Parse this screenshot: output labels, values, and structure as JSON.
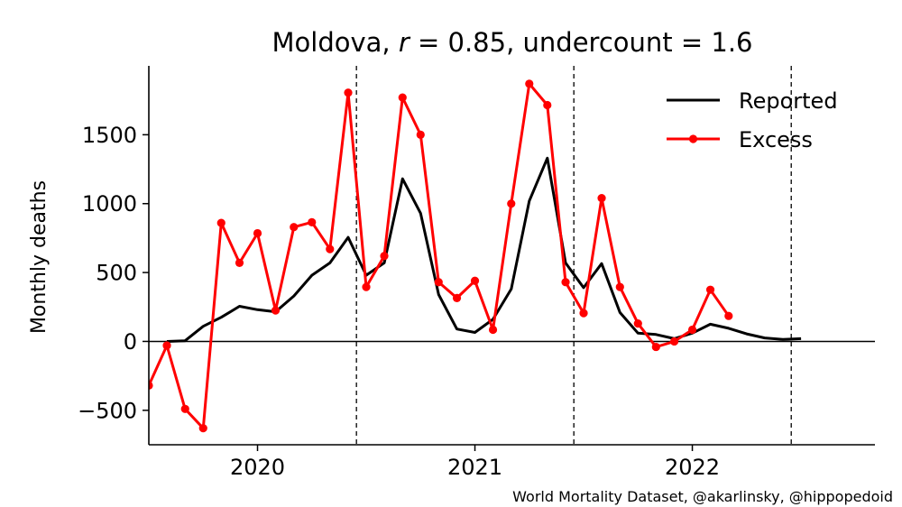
{
  "chart_data": {
    "type": "line",
    "title_prefix": "Moldova, ",
    "title_r_symbol": "r",
    "title_r_value": " = 0.85, undercount = 1.6",
    "ylabel": "Monthly deaths",
    "xlabel": "",
    "xlim": [
      2019.5,
      2022.84
    ],
    "ylim": [
      -750,
      2000
    ],
    "y_ticks": [
      -500,
      0,
      500,
      1000,
      1500
    ],
    "y_tick_labels": [
      "−500",
      "0",
      "500",
      "1000",
      "1500"
    ],
    "x_ticks": [
      2020,
      2021,
      2022
    ],
    "x_tick_labels": [
      "2020",
      "2021",
      "2022"
    ],
    "vlines": [
      2020.455,
      2021.455,
      2022.455
    ],
    "hline": 0,
    "grid": false,
    "legend_position": "top-right",
    "series": [
      {
        "name": "Reported",
        "color": "#000000",
        "marker": false,
        "x": [
          2019.583,
          2019.667,
          2019.75,
          2019.833,
          2019.917,
          2020.0,
          2020.083,
          2020.167,
          2020.25,
          2020.333,
          2020.417,
          2020.5,
          2020.583,
          2020.667,
          2020.75,
          2020.833,
          2020.917,
          2021.0,
          2021.083,
          2021.167,
          2021.25,
          2021.333,
          2021.417,
          2021.5,
          2021.583,
          2021.667,
          2021.75,
          2021.833,
          2021.917,
          2022.0,
          2022.083,
          2022.167,
          2022.25,
          2022.333,
          2022.417,
          2022.5
        ],
        "y": [
          0,
          5,
          110,
          175,
          255,
          230,
          215,
          330,
          480,
          570,
          755,
          480,
          570,
          1180,
          930,
          340,
          90,
          65,
          160,
          380,
          1020,
          1330,
          570,
          390,
          565,
          210,
          60,
          50,
          20,
          60,
          125,
          95,
          55,
          25,
          15,
          20
        ]
      },
      {
        "name": "Excess",
        "color": "#ff0000",
        "marker": true,
        "x": [
          2019.5,
          2019.583,
          2019.667,
          2019.75,
          2019.833,
          2019.917,
          2020.0,
          2020.083,
          2020.167,
          2020.25,
          2020.333,
          2020.417,
          2020.5,
          2020.583,
          2020.667,
          2020.75,
          2020.833,
          2020.917,
          2021.0,
          2021.083,
          2021.167,
          2021.25,
          2021.333,
          2021.417,
          2021.5,
          2021.583,
          2021.667,
          2021.75,
          2021.833,
          2021.917,
          2022.0,
          2022.083,
          2022.167
        ],
        "y": [
          -320,
          -30,
          -490,
          -630,
          860,
          570,
          785,
          225,
          830,
          865,
          670,
          1805,
          395,
          620,
          1770,
          1500,
          430,
          315,
          440,
          85,
          1000,
          1870,
          1715,
          430,
          205,
          1040,
          395,
          130,
          -40,
          0,
          85,
          375,
          185
        ]
      }
    ]
  },
  "credit": "World Mortality Dataset, @akarlinsky, @hippopedoid"
}
